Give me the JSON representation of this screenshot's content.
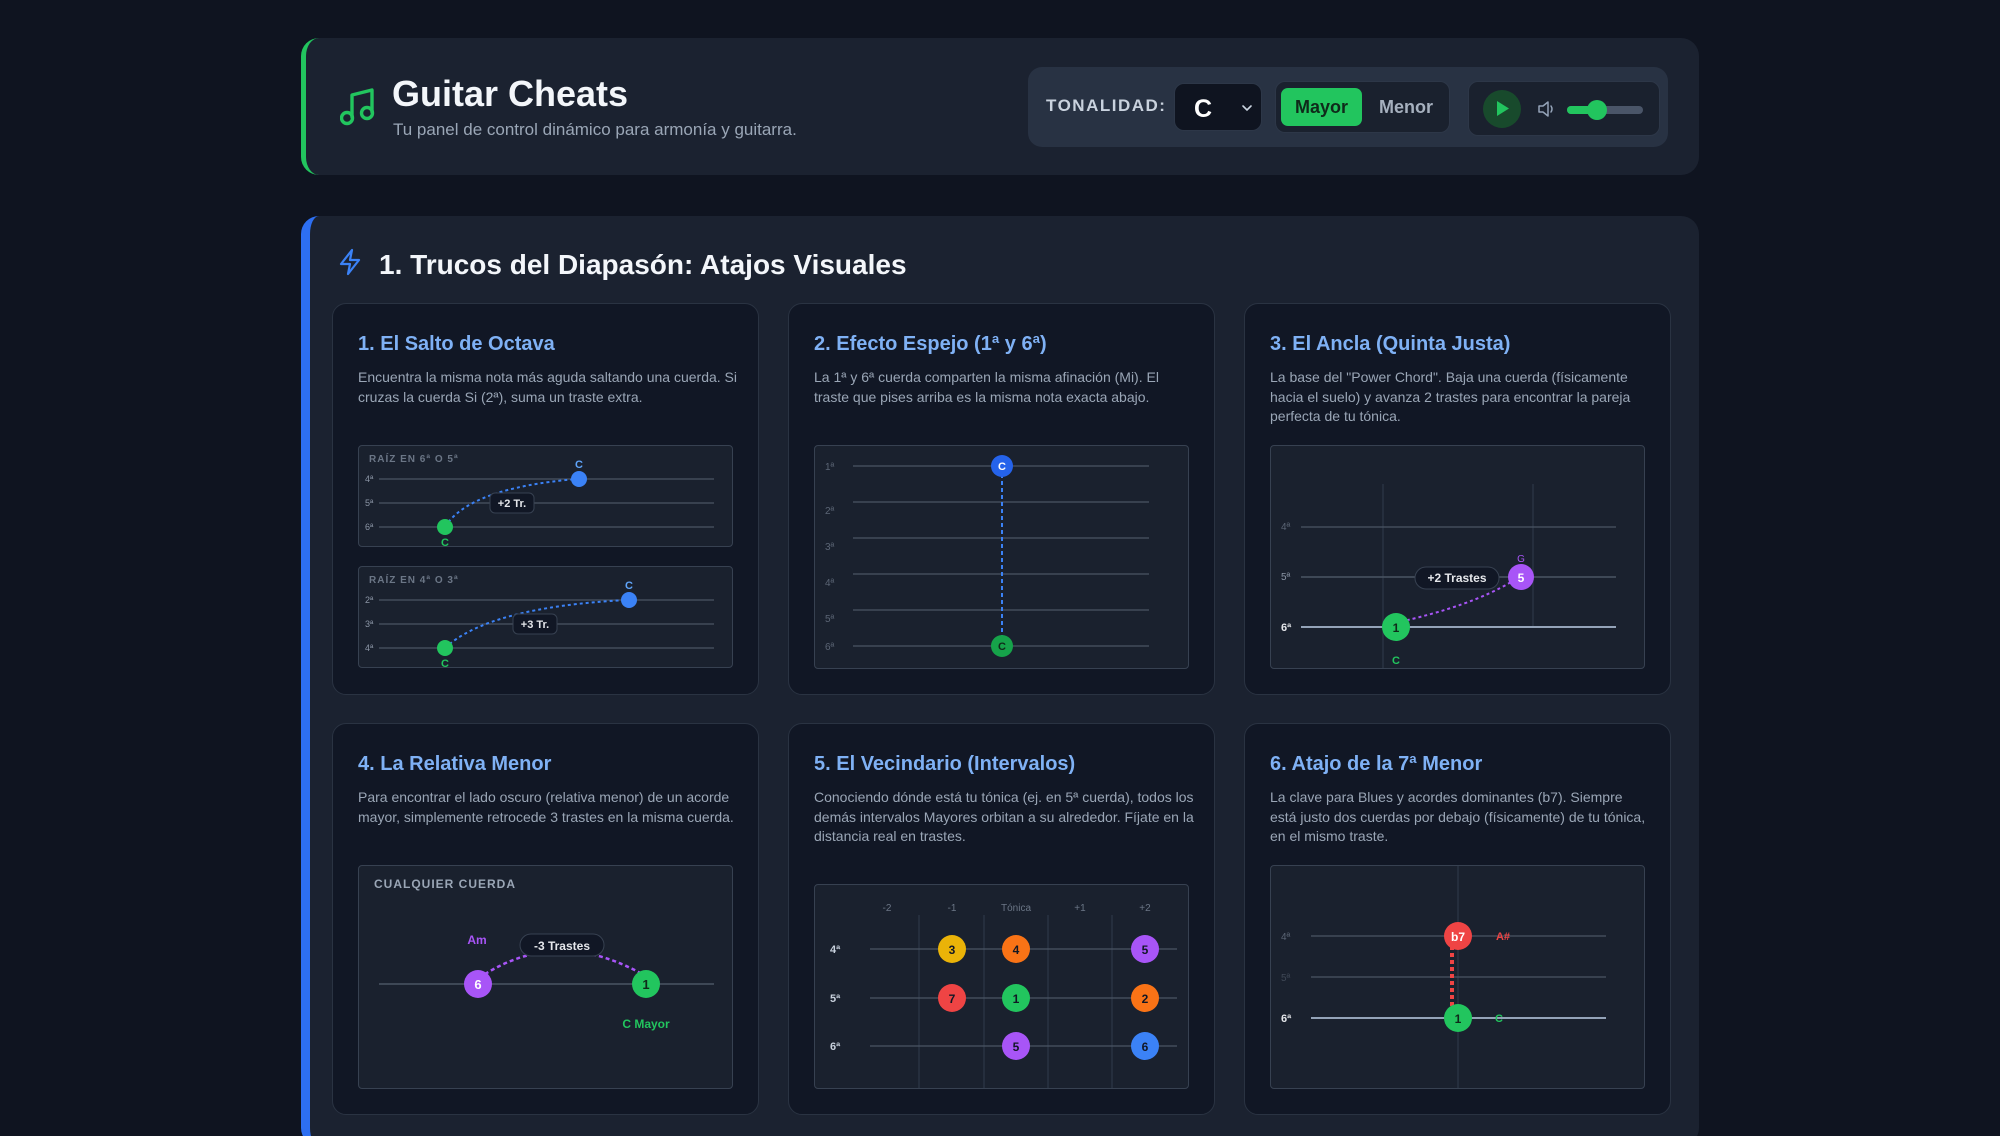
{
  "header": {
    "title": "Guitar Cheats",
    "subtitle": "Tu panel de control dinámico para armonía y guitarra.",
    "key_label": "TONALIDAD:",
    "key_value": "C",
    "mode_major": "Mayor",
    "mode_minor": "Menor",
    "selected_mode": "Mayor",
    "volume_level": 0.4
  },
  "section": {
    "title": "1. Trucos del Diapasón: Atajos Visuales"
  },
  "cards": [
    {
      "title": "1. El Salto de Octava",
      "desc": "Encuentra la misma nota más aguda saltando una cuerda. Si cruzas la cuerda Si (2ª), suma un traste extra.",
      "panel_a": {
        "heading": "RAÍZ EN 6ª O 5ª",
        "strings": [
          "4ª",
          "5ª",
          "6ª"
        ],
        "jump": "+2 Tr.",
        "root_note": "C",
        "octave_note": "C"
      },
      "panel_b": {
        "heading": "RAÍZ EN 4ª O 3ª",
        "strings": [
          "2ª",
          "3ª",
          "4ª"
        ],
        "jump": "+3 Tr.",
        "root_note": "C",
        "octave_note": "C"
      }
    },
    {
      "title": "2. Efecto Espejo (1ª y 6ª)",
      "desc": "La 1ª y 6ª cuerda comparten la misma afinación (Mi). El traste que pises arriba es la misma nota exacta abajo.",
      "strings": [
        "1ª",
        "2ª",
        "3ª",
        "4ª",
        "5ª",
        "6ª"
      ],
      "top_note": "C",
      "bottom_note": "C"
    },
    {
      "title": "3. El Ancla (Quinta Justa)",
      "desc": "La base del \"Power Chord\". Baja una cuerda (físicamente hacia el suelo) y avanza 2 trastes para encontrar la pareja perfecta de tu tónica.",
      "strings": [
        "4ª",
        "5ª",
        "6ª"
      ],
      "jump": "+2 Trastes",
      "root_degree": "1",
      "root_note": "C",
      "fifth_degree": "5",
      "fifth_note": "G"
    },
    {
      "title": "4. La Relativa Menor",
      "desc": "Para encontrar el lado oscuro (relativa menor) de un acorde mayor, simplemente retrocede 3 trastes en la misma cuerda.",
      "heading": "CUALQUIER CUERDA",
      "jump": "-3 Trastes",
      "minor_note": "Am",
      "minor_degree": "6",
      "major_degree": "1",
      "major_label": "C Mayor"
    },
    {
      "title": "5. El Vecindario (Intervalos)",
      "desc": "Conociendo dónde está tu tónica (ej. en 5ª cuerda), todos los demás intervalos Mayores orbitan a su alrededor. Fíjate en la distancia real en trastes.",
      "columns": [
        "-2",
        "-1",
        "Tónica",
        "+1",
        "+2"
      ],
      "strings": [
        "4ª",
        "5ª",
        "6ª"
      ],
      "notes": [
        {
          "label": "3",
          "string": 0,
          "col": 1,
          "color": "#eab308"
        },
        {
          "label": "4",
          "string": 0,
          "col": 2,
          "color": "#f97316"
        },
        {
          "label": "5",
          "string": 0,
          "col": 4,
          "color": "#a855f7"
        },
        {
          "label": "7",
          "string": 1,
          "col": 1,
          "color": "#ef4444"
        },
        {
          "label": "1",
          "string": 1,
          "col": 2,
          "color": "#22c55e"
        },
        {
          "label": "2",
          "string": 1,
          "col": 4,
          "color": "#f97316"
        },
        {
          "label": "5",
          "string": 2,
          "col": 2,
          "color": "#a855f7"
        },
        {
          "label": "6",
          "string": 2,
          "col": 4,
          "color": "#3b82f6"
        }
      ]
    },
    {
      "title": "6. Atajo de la 7ª Menor",
      "desc": "La clave para Blues y acordes dominantes (b7). Siempre está justo dos cuerdas por debajo (físicamente) de tu tónica, en el mismo traste.",
      "strings": [
        "4ª",
        "5ª",
        "6ª"
      ],
      "seventh_degree": "b7",
      "seventh_note": "A#",
      "root_degree": "1",
      "root_note": "C"
    }
  ],
  "colors": {
    "green": "#22c55e",
    "blue": "#3b82f6",
    "purple": "#a855f7",
    "red": "#ef4444",
    "accent_title": "#7fb1f5"
  }
}
